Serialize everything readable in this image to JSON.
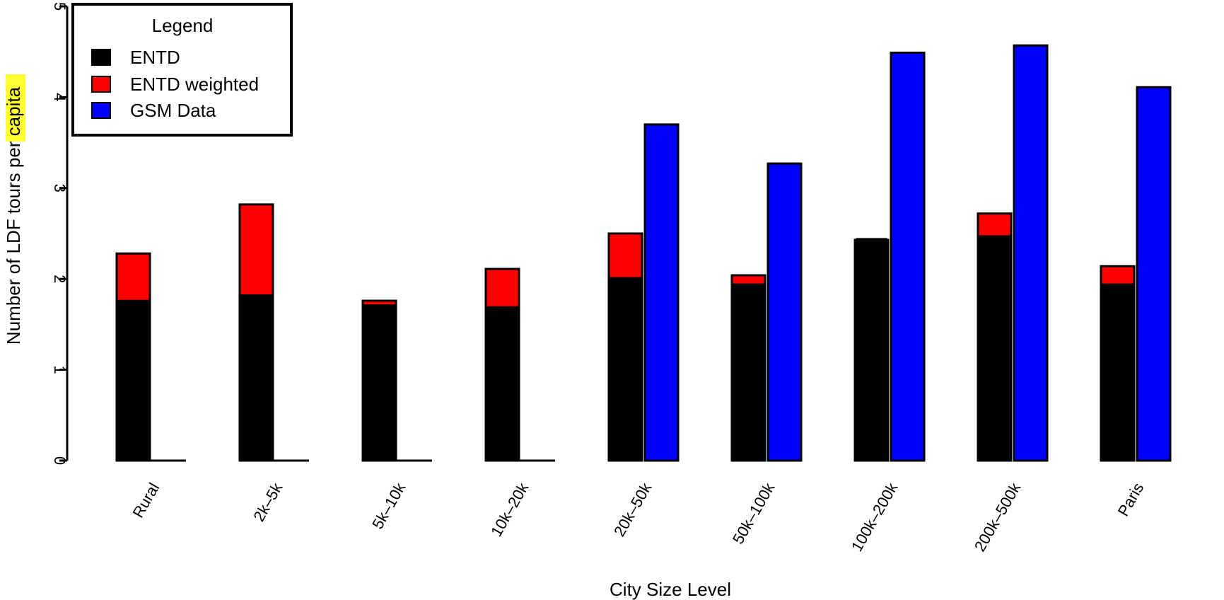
{
  "chart_data": {
    "type": "bar",
    "title": "",
    "xlabel": "City Size Level",
    "ylabel_parts": [
      "Number of LDF tours per ",
      "capita"
    ],
    "ylim": [
      0,
      5
    ],
    "yticks": [
      "0",
      "1",
      "2",
      "3",
      "4",
      "5"
    ],
    "categories": [
      "Rural",
      "2k–5k",
      "5k–10k",
      "10k–20k",
      "20k–50k",
      "50k–100k",
      "100k–200k",
      "200k–500k",
      "Paris"
    ],
    "series": [
      {
        "name": "ENTD",
        "color": "#000000",
        "values": [
          1.77,
          1.83,
          1.72,
          1.7,
          2.02,
          1.95,
          2.45,
          2.48,
          1.95
        ]
      },
      {
        "name": "ENTD weighted",
        "color": "#ff0000",
        "values": [
          2.28,
          2.82,
          1.76,
          2.11,
          2.5,
          2.04,
          2.43,
          2.72,
          2.14
        ]
      },
      {
        "name": "GSM Data",
        "color": "#0000ff",
        "values": [
          0,
          0,
          0,
          0,
          3.7,
          3.27,
          4.49,
          4.57,
          4.11
        ]
      }
    ],
    "legend": {
      "title": "Legend",
      "position": "top-left"
    },
    "grid": false
  }
}
